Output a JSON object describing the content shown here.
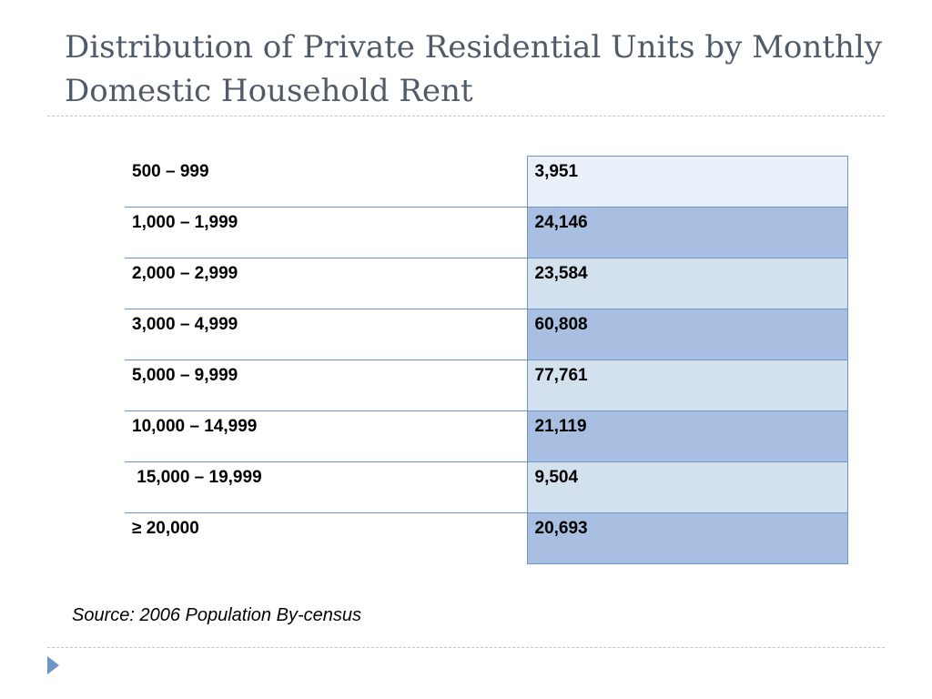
{
  "slide": {
    "title": "Distribution of Private Residential Units by Monthly Domestic Household Rent",
    "source": "Source: 2006 Population By-census",
    "table": {
      "rows": [
        {
          "range": "500 – 999",
          "units": "3,951"
        },
        {
          "range": "1,000 – 1,999",
          "units": "24,146"
        },
        {
          "range": "2,000 – 2,999",
          "units": "23,584"
        },
        {
          "range": "3,000 – 4,999",
          "units": "60,808"
        },
        {
          "range": "5,000 – 9,999",
          "units": "77,761"
        },
        {
          "range": "10,000 – 14,999",
          "units": "21,119"
        },
        {
          "range": " 15,000 – 19,999",
          "units": "9,504"
        },
        {
          "range": "≥ 20,000",
          "units": "20,693"
        }
      ]
    },
    "colors": {
      "accent": "#6f94c8",
      "row_light": "#d3e0ee",
      "row_dark": "#a8bfe1",
      "row_first": "#eaf0f9",
      "title": "#505a68"
    },
    "icons": {
      "bullet": "arrow-icon"
    }
  }
}
